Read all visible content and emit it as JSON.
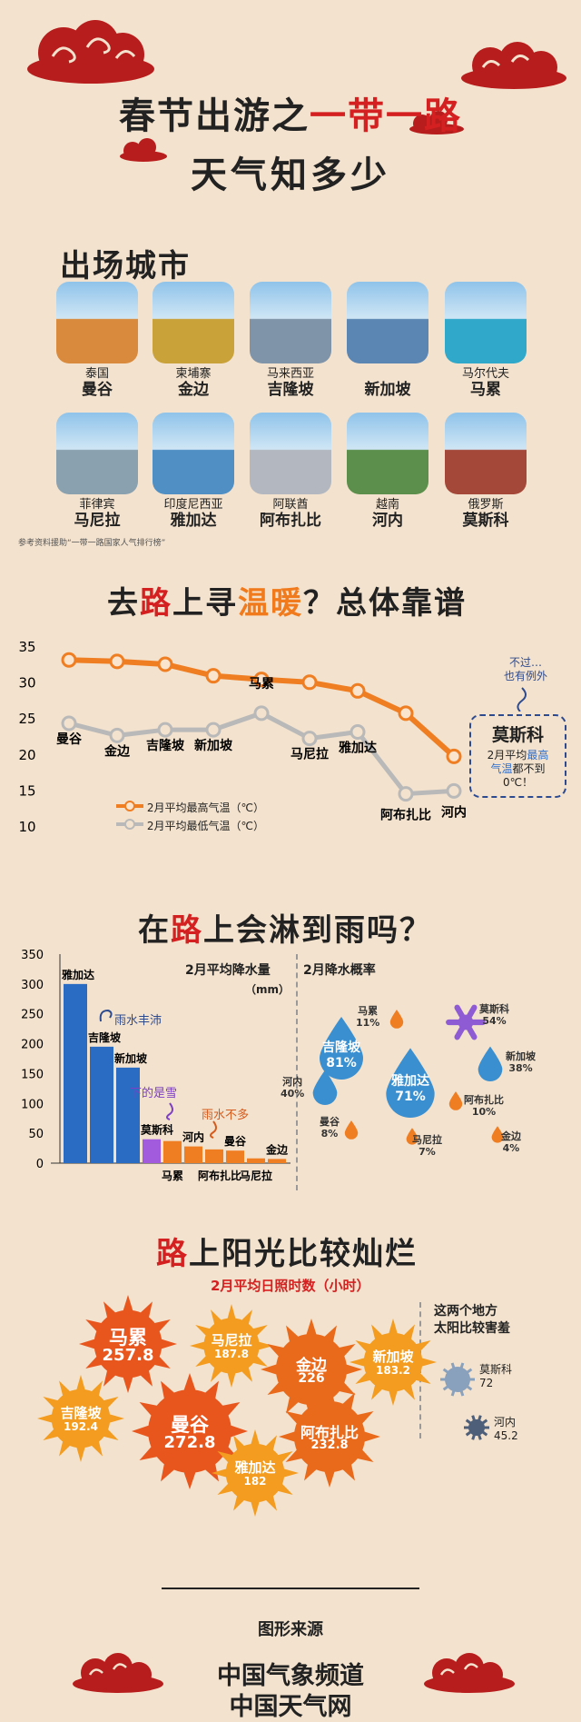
{
  "header": {
    "title_part1": "春节出游之",
    "title_part2": "一带一路",
    "subtitle": "天气知多少"
  },
  "cities_section": {
    "title": "出场城市",
    "cities": [
      {
        "country": "泰国",
        "name": "曼谷",
        "color": "#d98a3c"
      },
      {
        "country": "柬埔寨",
        "name": "金边",
        "color": "#caa23a"
      },
      {
        "country": "马来西亚",
        "name": "吉隆坡",
        "color": "#7f94a8"
      },
      {
        "country": "",
        "name": "新加坡",
        "color": "#5b86b4"
      },
      {
        "country": "马尔代夫",
        "name": "马累",
        "color": "#2fa8c9"
      },
      {
        "country": "菲律宾",
        "name": "马尼拉",
        "color": "#8aa1b0"
      },
      {
        "country": "印度尼西亚",
        "name": "雅加达",
        "color": "#4f8fc4"
      },
      {
        "country": "阿联酋",
        "name": "阿布扎比",
        "color": "#b3b8c0"
      },
      {
        "country": "越南",
        "name": "河内",
        "color": "#5c8f4c"
      },
      {
        "country": "俄罗斯",
        "name": "莫斯科",
        "color": "#a4493a"
      }
    ],
    "source_note": "参考资料援助“一带一路国家人气排行榜”"
  },
  "temp_section": {
    "title_a": "去",
    "title_b": "路",
    "title_c": "上寻",
    "title_d": "温暖",
    "title_e": "？总体靠谱",
    "legend_high": "2月平均最高气温（℃）",
    "legend_low": "2月平均最低气温（℃）",
    "note_exception": "不过…\n也有例外",
    "moscow_name": "莫斯科",
    "moscow_line1": "2月平均",
    "moscow_line1_hl": "最高",
    "moscow_line2_hl": "气温",
    "moscow_line2": "都不到",
    "moscow_line3": "0℃！"
  },
  "rain_section": {
    "title_a": "在",
    "title_b": "路",
    "title_c": "上会淋到雨吗？",
    "bar_title": "2月平均降水量",
    "bar_unit": "（mm）",
    "prob_title": "2月降水概率",
    "note_rich": "雨水丰沛",
    "note_snow": "下的是雪",
    "note_little": "雨水不多",
    "probabilities": [
      {
        "city": "吉隆坡",
        "pct": "81%",
        "color": "#3a8fd0",
        "big": true
      },
      {
        "city": "马累",
        "pct": "11%",
        "color": "#ef7d22",
        "big": false
      },
      {
        "city": "莫斯科",
        "pct": "54%",
        "color": "#8e5bd4",
        "big": false
      },
      {
        "city": "河内",
        "pct": "40%",
        "color": "#3a8fd0",
        "big": false
      },
      {
        "city": "雅加达",
        "pct": "71%",
        "color": "#3a8fd0",
        "big": true
      },
      {
        "city": "新加坡",
        "pct": "38%",
        "color": "#3a8fd0",
        "big": false
      },
      {
        "city": "阿布扎比",
        "pct": "10%",
        "color": "#ef7d22",
        "big": false
      },
      {
        "city": "曼谷",
        "pct": "8%",
        "color": "#ef7d22",
        "big": false
      },
      {
        "city": "马尼拉",
        "pct": "7%",
        "color": "#ef7d22",
        "big": false
      },
      {
        "city": "金边",
        "pct": "4%",
        "color": "#ef7d22",
        "big": false
      }
    ]
  },
  "sun_section": {
    "title_a": "路",
    "title_b": "上阳光比较灿烂",
    "subtitle": "2月平均日照时数（小时）",
    "side_note_1": "这两个地方",
    "side_note_2": "太阳比较害羞",
    "suns": [
      {
        "city": "马累",
        "hours": "257.8"
      },
      {
        "city": "马尼拉",
        "hours": "187.8"
      },
      {
        "city": "金边",
        "hours": "226"
      },
      {
        "city": "新加坡",
        "hours": "183.2"
      },
      {
        "city": "吉隆坡",
        "hours": "192.4"
      },
      {
        "city": "曼谷",
        "hours": "272.8"
      },
      {
        "city": "阿布扎比",
        "hours": "232.8"
      },
      {
        "city": "雅加达",
        "hours": "182"
      }
    ],
    "weak": [
      {
        "city": "莫斯科",
        "hours": "72"
      },
      {
        "city": "河内",
        "hours": "45.2"
      }
    ]
  },
  "footer": {
    "source_label": "图形来源",
    "org1": "中国气象频道",
    "org2": "中国天气网"
  },
  "chart_data": [
    {
      "type": "line",
      "categories": [
        "曼谷",
        "金边",
        "吉隆坡",
        "新加坡",
        "马累",
        "马尼拉",
        "雅加达",
        "阿布扎比",
        "河内"
      ],
      "series": [
        {
          "name": "2月平均最高气温（℃）",
          "values": [
            33.2,
            33.0,
            32.6,
            31.0,
            30.5,
            30.1,
            28.9,
            25.8,
            19.8
          ]
        },
        {
          "name": "2月平均最低气温（℃）",
          "values": [
            24.4,
            22.7,
            23.5,
            23.5,
            25.8,
            22.3,
            23.2,
            14.6,
            15.0
          ]
        }
      ],
      "yticks": [
        35,
        30,
        25,
        20,
        15,
        10
      ],
      "ylim": [
        10,
        35
      ]
    },
    {
      "type": "bar",
      "categories": [
        "雅加达",
        "吉隆坡",
        "新加坡",
        "莫斯科",
        "马累",
        "河内",
        "阿布扎比",
        "曼谷",
        "马尼拉",
        "金边"
      ],
      "values": [
        300,
        195,
        160,
        40,
        37,
        28,
        23,
        21,
        8,
        7
      ],
      "colors": [
        "#2a6cc4",
        "#2a6cc4",
        "#2a6cc4",
        "#a15bdc",
        "#ef7d22",
        "#ef7d22",
        "#ef7d22",
        "#ef7d22",
        "#ef7d22",
        "#ef7d22"
      ],
      "yticks": [
        350,
        300,
        250,
        200,
        150,
        100,
        50,
        0
      ],
      "ylim": [
        0,
        350
      ],
      "title": "2月平均降水量",
      "ylabel": "（mm）"
    }
  ]
}
